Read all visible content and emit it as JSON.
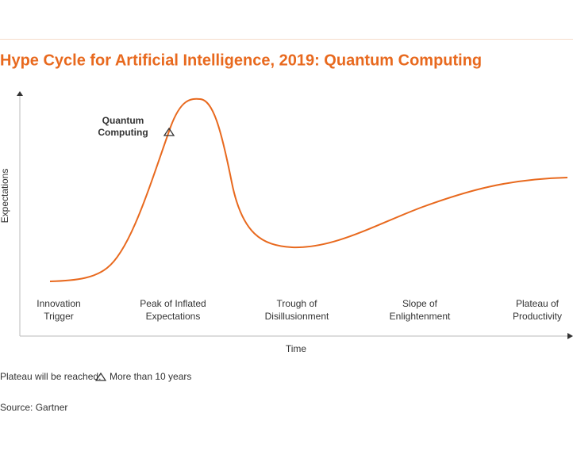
{
  "title": "Hype Cycle for Artificial Intelligence, 2019: Quantum Computing",
  "y_axis_label": "Expectations",
  "x_axis_label": "Time",
  "phases": [
    [
      "Innovation",
      "Trigger"
    ],
    [
      "Peak of Inflated",
      "Expectations"
    ],
    [
      "Trough of",
      "Disillusionment"
    ],
    [
      "Slope of",
      "Enlightenment"
    ],
    [
      "Plateau of",
      "Productivity"
    ]
  ],
  "technology": {
    "name": [
      "Quantum",
      "Computing"
    ]
  },
  "legend": {
    "label": "Plateau will be reached:",
    "entry": "More than 10 years"
  },
  "source": "Source: Gartner"
}
